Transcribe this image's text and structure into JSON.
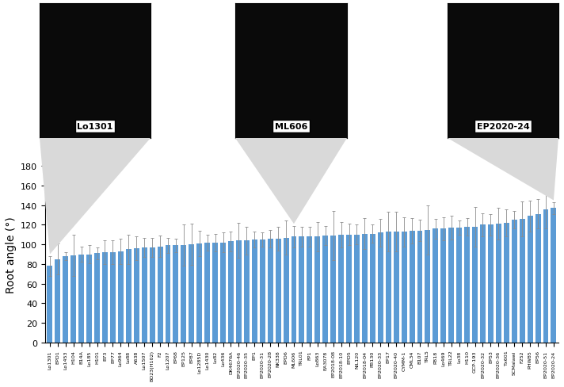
{
  "chart_data": {
    "type": "bar",
    "y_label": "Root angle (°)",
    "annotations": [
      "Lo1301",
      "ML606",
      "EP2020-24"
    ],
    "categories": [
      "Lo1301",
      "EPD1",
      "Lo1453",
      "H104",
      "B14A",
      "Lo185",
      "H101",
      "B73",
      "EP77",
      "Lo964",
      "Lo88",
      "A638",
      "Lo1507",
      "BO23(H102)",
      "F2",
      "Lo1207",
      "EP68",
      "EP125",
      "EP87",
      "Lo1285D",
      "Lo1430",
      "Lo82",
      "Lo436",
      "DK4676A",
      "EP2020-46",
      "EP2020-35",
      "EP1",
      "EP2020-31",
      "EP2020-28",
      "NK338",
      "EPD6",
      "ML606",
      "TRL01",
      "FP1",
      "Lo863",
      "EA3078",
      "EP2018-08",
      "EP2018-10",
      "EPD5",
      "NIL120",
      "EP2018-04",
      "PB130",
      "EP2020-33",
      "EP17",
      "EP2020-40",
      "CYMM-1",
      "CML34",
      "B107",
      "TRL5",
      "PB18",
      "Lo469",
      "TRL22",
      "Lo38",
      "H110",
      "GCP-193",
      "EP2020-32",
      "EP53",
      "EP2020-36",
      "Tx601",
      "SCMalawi",
      "F252",
      "PHW85",
      "EP56",
      "EP2020-51",
      "EP2020-24"
    ],
    "values": [
      78,
      85,
      88,
      89,
      90,
      90,
      91,
      92,
      92,
      93,
      95,
      96,
      97,
      97,
      98,
      99,
      99,
      99,
      100,
      101,
      102,
      102,
      102,
      103,
      104,
      104,
      105,
      105,
      106,
      106,
      107,
      108,
      108,
      108,
      108,
      109,
      109,
      110,
      110,
      110,
      111,
      111,
      112,
      113,
      113,
      113,
      114,
      114,
      115,
      116,
      116,
      117,
      117,
      118,
      118,
      120,
      120,
      121,
      122,
      125,
      126,
      129,
      131,
      136,
      137
    ],
    "errors": [
      10,
      16,
      4,
      21,
      8,
      9,
      6,
      12,
      12,
      13,
      15,
      12,
      10,
      10,
      11,
      8,
      7,
      21,
      21,
      13,
      8,
      9,
      10,
      10,
      18,
      14,
      8,
      7,
      9,
      12,
      17,
      11,
      10,
      10,
      15,
      10,
      25,
      13,
      11,
      10,
      16,
      9,
      14,
      20,
      20,
      15,
      13,
      11,
      25,
      10,
      12,
      12,
      7,
      9,
      20,
      12,
      11,
      16,
      14,
      9,
      18,
      16,
      15,
      20,
      6
    ],
    "color": "#5B9BD5",
    "ylim": [
      0,
      180
    ],
    "yticks": [
      0,
      20,
      40,
      60,
      80,
      100,
      120,
      140,
      160,
      180
    ],
    "grid": false
  }
}
